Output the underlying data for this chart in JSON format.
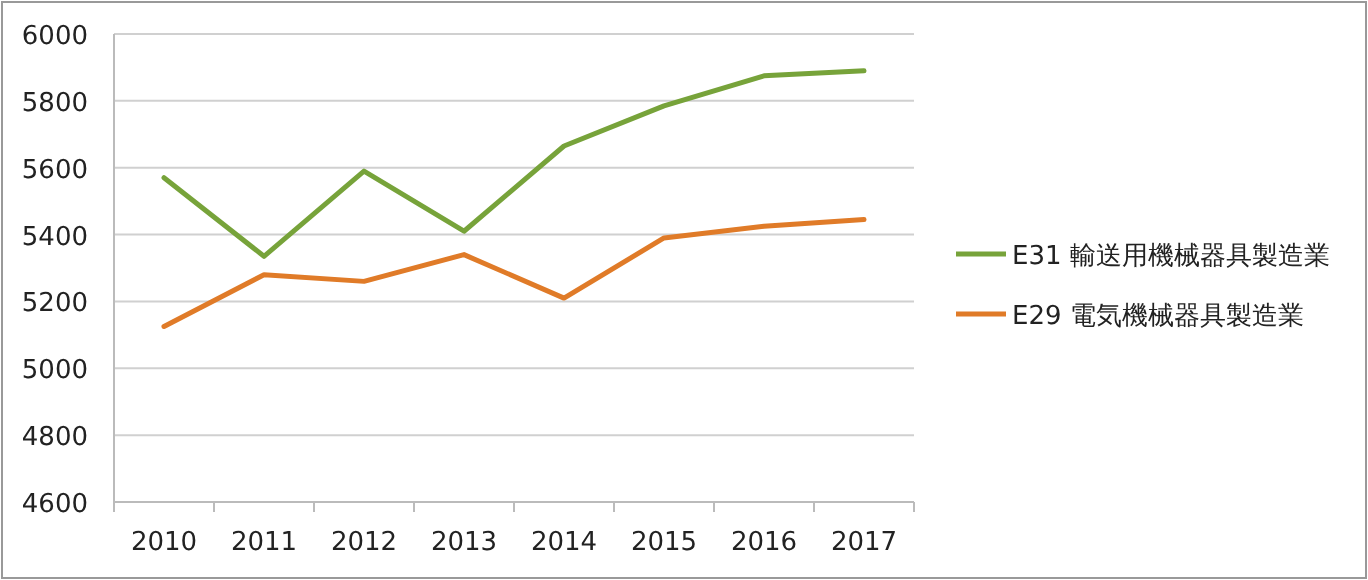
{
  "chart_data": {
    "type": "line",
    "categories": [
      "2010",
      "2011",
      "2012",
      "2013",
      "2014",
      "2015",
      "2016",
      "2017"
    ],
    "series": [
      {
        "name": "E31 輸送用機械器具製造業",
        "color": "#77a33a",
        "values": [
          5570,
          5335,
          5590,
          5410,
          5665,
          5785,
          5875,
          5890
        ]
      },
      {
        "name": "E29 電気機械器具製造業",
        "color": "#e07b28",
        "values": [
          5125,
          5280,
          5260,
          5340,
          5210,
          5390,
          5425,
          5445
        ]
      }
    ],
    "ylim": [
      4600,
      6000
    ],
    "yticks": [
      4600,
      4800,
      5000,
      5200,
      5400,
      5600,
      5800,
      6000
    ],
    "grid": "y",
    "legend": "right",
    "marker": "none",
    "line_style": "solid"
  }
}
